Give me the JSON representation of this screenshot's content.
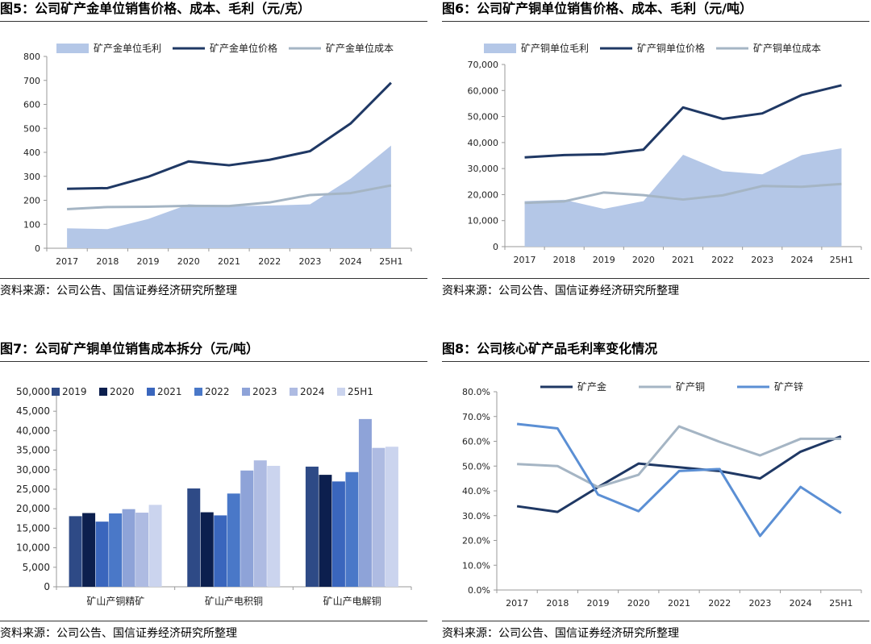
{
  "panels": [
    {
      "title": "图5：公司矿产金单位销售价格、成本、毛利（元/克）",
      "source": "资料来源：公司公告、国信证券经济研究所整理"
    },
    {
      "title": "图6：公司矿产铜单位销售价格、成本、毛利（元/吨）",
      "source": "资料来源：公司公告、国信证券经济研究所整理"
    },
    {
      "title": "图7：公司矿产铜单位销售成本拆分（元/吨）",
      "source": "资料来源：公司公告、国信证券经济研究所整理"
    },
    {
      "title": "图8：公司核心矿产品毛利率变化情况",
      "source": "资料来源：公司公告、国信证券经济研究所整理"
    }
  ],
  "chart_data": [
    {
      "type": "line",
      "categories": [
        "2017",
        "2018",
        "2019",
        "2020",
        "2021",
        "2022",
        "2023",
        "2024",
        "25H1"
      ],
      "ylim": [
        0,
        800
      ],
      "yticks": [
        "0",
        "100",
        "200",
        "300",
        "400",
        "500",
        "600",
        "700",
        "800"
      ],
      "legend_position": "top",
      "series": [
        {
          "name": "矿产金单位毛利",
          "kind": "area",
          "color": "#b4c7e7",
          "values": [
            83,
            80,
            122,
            183,
            175,
            178,
            183,
            290,
            428
          ]
        },
        {
          "name": "矿产金单位价格",
          "kind": "line",
          "color": "#1f3864",
          "values": [
            248,
            251,
            298,
            362,
            346,
            369,
            405,
            520,
            690
          ]
        },
        {
          "name": "矿产金单位成本",
          "kind": "line",
          "color": "#a5b5c4",
          "values": [
            163,
            172,
            173,
            177,
            176,
            191,
            222,
            230,
            262
          ]
        }
      ]
    },
    {
      "type": "line",
      "categories": [
        "2017",
        "2018",
        "2019",
        "2020",
        "2021",
        "2022",
        "2023",
        "2024",
        "25H1"
      ],
      "ylim": [
        0,
        70000
      ],
      "yticks": [
        "0",
        "10,000",
        "20,000",
        "30,000",
        "40,000",
        "50,000",
        "60,000",
        "70,000"
      ],
      "legend_position": "top",
      "series": [
        {
          "name": "矿产铜单位毛利",
          "kind": "area",
          "color": "#b4c7e7",
          "values": [
            17500,
            18000,
            14500,
            17500,
            35300,
            29000,
            27800,
            35200,
            37800
          ]
        },
        {
          "name": "矿产铜单位价格",
          "kind": "line",
          "color": "#1f3864",
          "values": [
            34300,
            35200,
            35500,
            37300,
            53500,
            49100,
            51200,
            58300,
            62000
          ]
        },
        {
          "name": "矿产铜单位成本",
          "kind": "line",
          "color": "#a5b5c4",
          "values": [
            16800,
            17400,
            20800,
            19800,
            18100,
            19700,
            23300,
            23000,
            24100
          ]
        }
      ]
    },
    {
      "type": "bar",
      "categories": [
        "矿山产铜精矿",
        "矿山产电积铜",
        "矿山产电解铜"
      ],
      "ylim": [
        0,
        50000
      ],
      "yticks": [
        "0",
        "5,000",
        "10,000",
        "15,000",
        "20,000",
        "25,000",
        "30,000",
        "35,000",
        "40,000",
        "45,000",
        "50,000"
      ],
      "legend_position": "top",
      "series": [
        {
          "name": "2019",
          "color": "#2e4a86",
          "values": [
            18100,
            25200,
            30800
          ]
        },
        {
          "name": "2020",
          "color": "#0c1f4e",
          "values": [
            18900,
            19100,
            28700
          ]
        },
        {
          "name": "2021",
          "color": "#3a66bd",
          "values": [
            16700,
            18300,
            27000
          ]
        },
        {
          "name": "2022",
          "color": "#4a78c8",
          "values": [
            18800,
            23900,
            29400
          ]
        },
        {
          "name": "2023",
          "color": "#8ea3d8",
          "values": [
            19900,
            29800,
            43000
          ]
        },
        {
          "name": "2024",
          "color": "#aebbe2",
          "values": [
            19000,
            32400,
            35600
          ]
        },
        {
          "name": "25H1",
          "color": "#cbd4ee",
          "values": [
            21000,
            31000,
            35900
          ]
        }
      ]
    },
    {
      "type": "line",
      "categories": [
        "2017",
        "2018",
        "2019",
        "2020",
        "2021",
        "2022",
        "2023",
        "2024",
        "25H1"
      ],
      "ylim": [
        0,
        80
      ],
      "yticks": [
        "0.0%",
        "10.0%",
        "20.0%",
        "30.0%",
        "40.0%",
        "50.0%",
        "60.0%",
        "70.0%",
        "80.0%"
      ],
      "legend_position": "top",
      "series": [
        {
          "name": "矿产金",
          "kind": "line",
          "color": "#1f3864",
          "values": [
            33.8,
            31.5,
            41.5,
            51.0,
            49.5,
            48.0,
            45.0,
            55.8,
            62.0
          ]
        },
        {
          "name": "矿产铜",
          "kind": "line",
          "color": "#a5b5c4",
          "values": [
            50.8,
            50.0,
            41.5,
            46.5,
            66.0,
            59.8,
            54.3,
            61.0,
            61.0
          ]
        },
        {
          "name": "矿产锌",
          "kind": "line",
          "color": "#5b8fd4",
          "values": [
            67.0,
            65.2,
            38.5,
            31.8,
            48.0,
            48.8,
            21.8,
            41.6,
            31.0
          ]
        }
      ]
    }
  ]
}
